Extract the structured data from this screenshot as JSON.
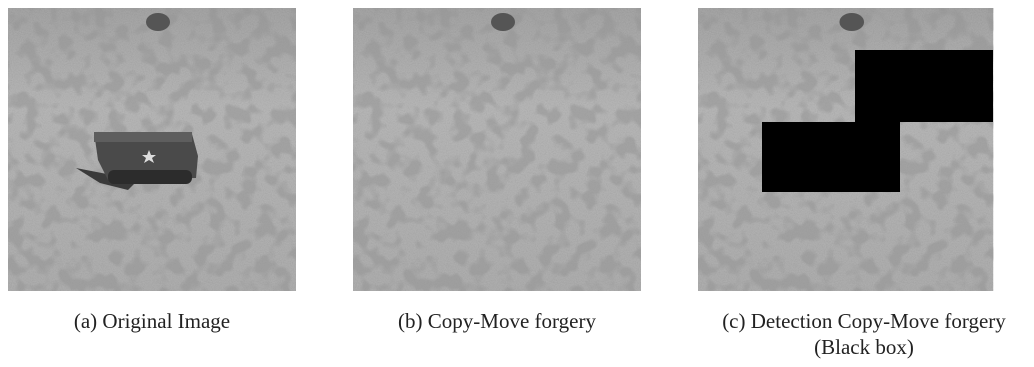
{
  "panels": [
    {
      "caption": [
        "(a) Original Image"
      ]
    },
    {
      "caption": [
        "(b) Copy-Move forgery"
      ]
    },
    {
      "caption": [
        "(c) Detection Copy-Move forgery",
        "(Black box)"
      ]
    }
  ]
}
